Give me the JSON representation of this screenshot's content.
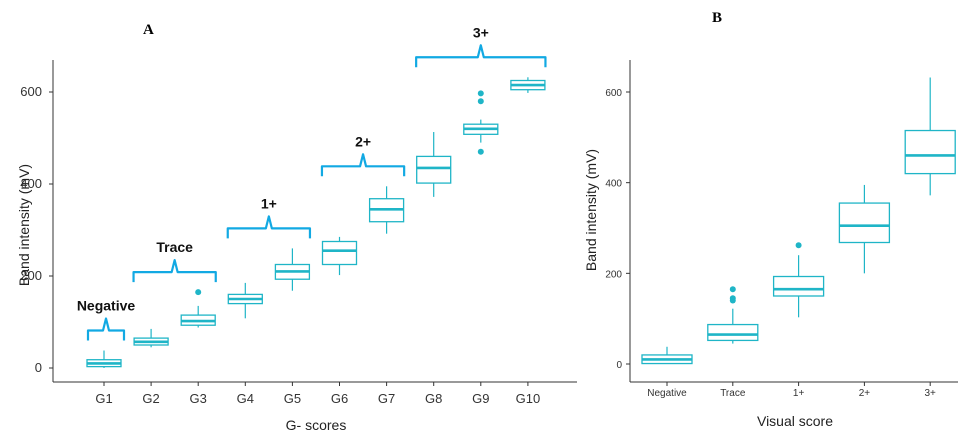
{
  "chart_data": [
    {
      "type": "box",
      "panel_label": "A",
      "xlabel": "G- scores",
      "ylabel": "Band intensity (mV)",
      "categories": [
        "G1",
        "G2",
        "G3",
        "G4",
        "G5",
        "G6",
        "G7",
        "G8",
        "G9",
        "G10"
      ],
      "yticks": [
        0,
        200,
        400,
        600
      ],
      "ylim": [
        -20,
        660
      ],
      "boxes": [
        {
          "min": 0,
          "q1": 3,
          "median": 10,
          "q3": 18,
          "max": 38,
          "outliers": []
        },
        {
          "min": 45,
          "q1": 50,
          "median": 57,
          "q3": 65,
          "max": 85,
          "outliers": []
        },
        {
          "min": 88,
          "q1": 93,
          "median": 102,
          "q3": 115,
          "max": 135,
          "outliers": [
            165
          ]
        },
        {
          "min": 108,
          "q1": 140,
          "median": 150,
          "q3": 160,
          "max": 185,
          "outliers": []
        },
        {
          "min": 168,
          "q1": 193,
          "median": 210,
          "q3": 225,
          "max": 260,
          "outliers": []
        },
        {
          "min": 202,
          "q1": 225,
          "median": 255,
          "q3": 275,
          "max": 285,
          "outliers": []
        },
        {
          "min": 292,
          "q1": 318,
          "median": 345,
          "q3": 368,
          "max": 395,
          "outliers": []
        },
        {
          "min": 372,
          "q1": 402,
          "median": 435,
          "q3": 460,
          "max": 513,
          "outliers": []
        },
        {
          "min": 490,
          "q1": 508,
          "median": 520,
          "q3": 530,
          "max": 540,
          "outliers": [
            470,
            580,
            597
          ]
        },
        {
          "min": 598,
          "q1": 605,
          "median": 615,
          "q3": 625,
          "max": 632,
          "outliers": []
        }
      ],
      "group_brackets": [
        {
          "label": "Negative",
          "from": "G1",
          "to": "G1"
        },
        {
          "label": "Trace",
          "from": "G2",
          "to": "G3"
        },
        {
          "label": "1+",
          "from": "G4",
          "to": "G5"
        },
        {
          "label": "2+",
          "from": "G6",
          "to": "G7"
        },
        {
          "label": "3+",
          "from": "G8",
          "to": "G10"
        }
      ],
      "color": "#1fb5c7",
      "bracket_color": "#12a9e3"
    },
    {
      "type": "box",
      "panel_label": "B",
      "xlabel": "Visual score",
      "ylabel": "Band intensity (mV)",
      "categories": [
        "Negative",
        "Trace",
        "1+",
        "2+",
        "3+"
      ],
      "yticks": [
        0,
        200,
        400,
        600
      ],
      "ylim": [
        -20,
        660
      ],
      "boxes": [
        {
          "min": 0,
          "q1": 1,
          "median": 10,
          "q3": 20,
          "max": 38,
          "outliers": []
        },
        {
          "min": 45,
          "q1": 52,
          "median": 65,
          "q3": 87,
          "max": 122,
          "outliers": [
            140,
            145,
            165
          ]
        },
        {
          "min": 103,
          "q1": 150,
          "median": 165,
          "q3": 193,
          "max": 240,
          "outliers": [
            262
          ]
        },
        {
          "min": 200,
          "q1": 268,
          "median": 305,
          "q3": 355,
          "max": 395,
          "outliers": []
        },
        {
          "min": 372,
          "q1": 420,
          "median": 460,
          "q3": 515,
          "max": 632,
          "outliers": []
        }
      ],
      "color": "#1fb5c7"
    }
  ]
}
